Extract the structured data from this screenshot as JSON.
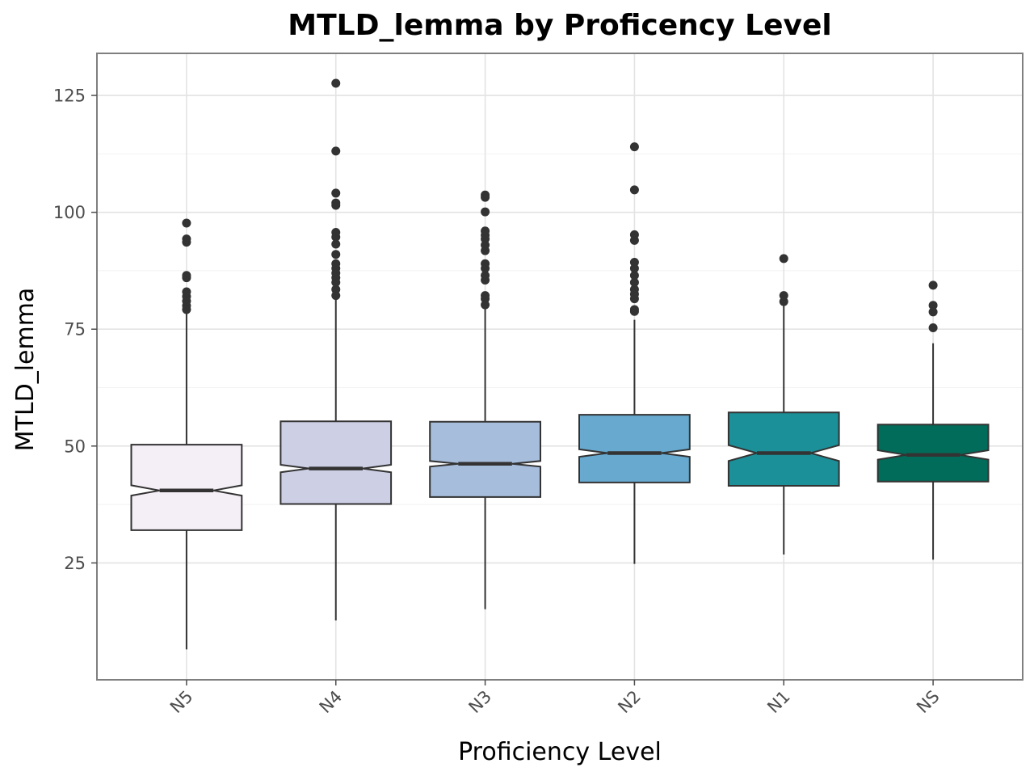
{
  "chart_data": {
    "type": "boxplot",
    "notched": true,
    "title": "MTLD_lemma by Proficency Level",
    "xlabel": "Proficiency Level",
    "ylabel": "MTLD_lemma",
    "ylim": [
      0,
      134
    ],
    "yticks": [
      25,
      50,
      75,
      100,
      125
    ],
    "grid": true,
    "categories": [
      "N5",
      "N4",
      "N3",
      "N2",
      "N1",
      "NS"
    ],
    "series": [
      {
        "category": "N5",
        "color": "#f4eef6",
        "whisker_low": 6.5,
        "q1": 32.0,
        "median": 40.5,
        "q3": 50.3,
        "whisker_high": 78.5,
        "notch_low": 39.4,
        "notch_high": 41.6,
        "outliers": [
          79.2,
          80.0,
          81.0,
          82.0,
          83.0,
          86.0,
          86.5,
          93.6,
          94.3,
          97.7
        ]
      },
      {
        "category": "N4",
        "color": "#cdd0e5",
        "whisker_low": 12.7,
        "q1": 37.6,
        "median": 45.2,
        "q3": 55.3,
        "whisker_high": 81.5,
        "notch_low": 44.4,
        "notch_high": 46.0,
        "outliers": [
          82.2,
          83.5,
          85.0,
          86.0,
          87.0,
          88.0,
          89.0,
          91.0,
          93.2,
          94.7,
          95.7,
          101.5,
          102.0,
          104.1,
          113.1,
          127.6
        ]
      },
      {
        "category": "N3",
        "color": "#a6bddb",
        "whisker_low": 15.1,
        "q1": 39.1,
        "median": 46.2,
        "q3": 55.2,
        "whisker_high": 79.7,
        "notch_low": 45.6,
        "notch_high": 46.8,
        "outliers": [
          80.2,
          81.5,
          82.2,
          85.5,
          86.5,
          88.0,
          89.0,
          91.8,
          93.0,
          94.3,
          95.1,
          96.0,
          100.1,
          103.2,
          103.7
        ]
      },
      {
        "category": "N2",
        "color": "#67a9cf",
        "whisker_low": 24.8,
        "q1": 42.2,
        "median": 48.5,
        "q3": 56.7,
        "whisker_high": 77.0,
        "notch_low": 47.7,
        "notch_high": 49.3,
        "outliers": [
          78.8,
          79.2,
          81.5,
          82.5,
          83.5,
          85.0,
          86.5,
          88.0,
          89.3,
          94.0,
          95.2,
          104.8,
          114.0
        ]
      },
      {
        "category": "N1",
        "color": "#1c9099",
        "whisker_low": 26.8,
        "q1": 41.5,
        "median": 48.5,
        "q3": 57.2,
        "whisker_high": 80.0,
        "notch_low": 46.8,
        "notch_high": 50.2,
        "outliers": [
          80.9,
          82.2,
          90.1
        ]
      },
      {
        "category": "NS",
        "color": "#016c59",
        "whisker_low": 25.7,
        "q1": 42.4,
        "median": 48.1,
        "q3": 54.6,
        "whisker_high": 72.0,
        "notch_low": 47.1,
        "notch_high": 49.1,
        "outliers": [
          75.3,
          78.7,
          80.1,
          84.4
        ]
      }
    ]
  }
}
